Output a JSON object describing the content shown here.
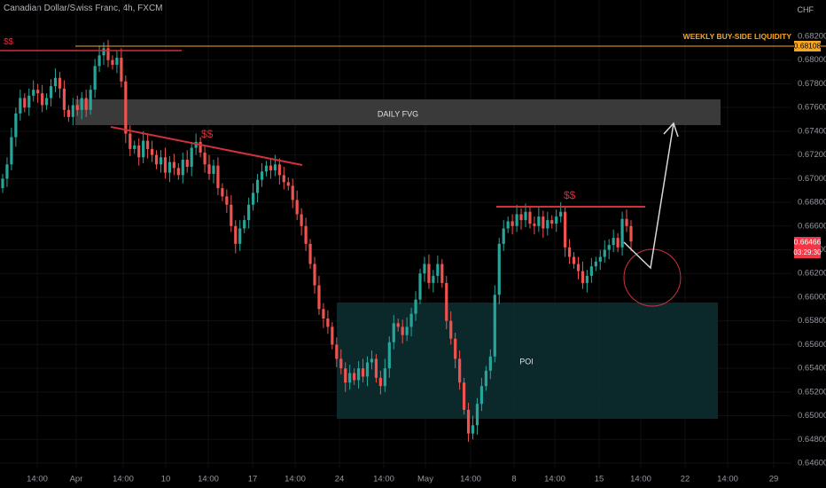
{
  "header": {
    "symbol": "Canadian Dollar/Swiss Franc, 4h, FXCM",
    "currency": "CHF"
  },
  "colors": {
    "up": "#26a69a",
    "down": "#ef5350",
    "orange": "#f5a623",
    "red_line": "#d1313b",
    "fvg": "#3a3a3a",
    "poi": "#0d2f32",
    "grid": "#111111"
  },
  "price_axis": {
    "ticks": [
      "0.68200",
      "0.68000",
      "0.67800",
      "0.67600",
      "0.67400",
      "0.67200",
      "0.67000",
      "0.66800",
      "0.66600",
      "0.66400",
      "0.66200",
      "0.66000",
      "0.65800",
      "0.65600",
      "0.65400",
      "0.65200",
      "0.65000",
      "0.64800",
      "0.64600"
    ]
  },
  "time_axis": {
    "labels": [
      "14:00",
      "Apr",
      "14:00",
      "10",
      "14:00",
      "17",
      "14:00",
      "24",
      "14:00",
      "May",
      "14:00",
      "8",
      "14:00",
      "15",
      "14:00",
      "22",
      "14:00",
      "29"
    ]
  },
  "annotations": {
    "weekly_liquidity_label": "WEEKLY BUY-SIDE LIQUIDITY",
    "weekly_liquidity_price": "0.68108",
    "current_price": "0.66466",
    "countdown": "03:29:30",
    "daily_fvg": "DAILY FVG",
    "poi": "POI",
    "dollar_marks": [
      "$$",
      "$$",
      "$$"
    ]
  },
  "chart_data": {
    "type": "candlestick",
    "title": "Canadian Dollar/Swiss Franc, 4h, FXCM",
    "ylim": [
      0.6455,
      0.6835
    ],
    "x_ticks": [
      "14:00",
      "Apr",
      "14:00",
      "10",
      "14:00",
      "17",
      "14:00",
      "24",
      "14:00",
      "May",
      "14:00",
      "8",
      "14:00",
      "15",
      "14:00",
      "22",
      "14:00",
      "29"
    ],
    "close": [
      0.67,
      0.6712,
      0.6735,
      0.6755,
      0.6768,
      0.676,
      0.677,
      0.6775,
      0.6772,
      0.6762,
      0.6768,
      0.6778,
      0.6785,
      0.6776,
      0.6758,
      0.6752,
      0.6762,
      0.6758,
      0.6768,
      0.6758,
      0.6775,
      0.6795,
      0.6804,
      0.681,
      0.68,
      0.6796,
      0.6802,
      0.6782,
      0.6738,
      0.6725,
      0.6728,
      0.6718,
      0.6732,
      0.6725,
      0.672,
      0.6712,
      0.6718,
      0.6705,
      0.6714,
      0.6709,
      0.6703,
      0.6716,
      0.671,
      0.6726,
      0.6731,
      0.6722,
      0.6712,
      0.6704,
      0.6711,
      0.6692,
      0.6685,
      0.6678,
      0.666,
      0.6645,
      0.6658,
      0.6665,
      0.6678,
      0.6688,
      0.6699,
      0.6706,
      0.6711,
      0.6707,
      0.6712,
      0.6703,
      0.6697,
      0.6694,
      0.6682,
      0.667,
      0.666,
      0.6645,
      0.6628,
      0.661,
      0.659,
      0.6582,
      0.6575,
      0.656,
      0.6548,
      0.654,
      0.6528,
      0.6536,
      0.653,
      0.654,
      0.6533,
      0.6545,
      0.6548,
      0.6532,
      0.6525,
      0.654,
      0.6562,
      0.6578,
      0.6575,
      0.6568,
      0.6575,
      0.6586,
      0.6598,
      0.662,
      0.6628,
      0.6612,
      0.6618,
      0.6628,
      0.6612,
      0.658,
      0.6565,
      0.6548,
      0.6528,
      0.6505,
      0.6485,
      0.6492,
      0.651,
      0.6525,
      0.6538,
      0.655,
      0.6602,
      0.6645,
      0.6658,
      0.6664,
      0.666,
      0.667,
      0.6665,
      0.6672,
      0.6662,
      0.666,
      0.6668,
      0.6658,
      0.6665,
      0.6662,
      0.6668,
      0.6672,
      0.6642,
      0.6634,
      0.6628,
      0.6622,
      0.6612,
      0.6618,
      0.6626,
      0.663,
      0.6634,
      0.664,
      0.6644,
      0.665,
      0.6642,
      0.6666,
      0.666,
      0.6647
    ],
    "series_names": []
  }
}
